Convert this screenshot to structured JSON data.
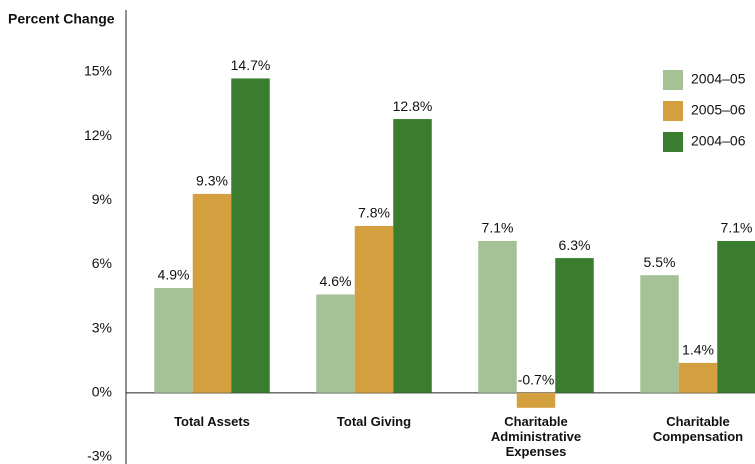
{
  "chart_data": {
    "type": "bar",
    "y_axis_label": "Percent Change",
    "categories": [
      "Total Assets",
      "Total Giving",
      "Charitable Administrative Expenses",
      "Charitable Compensation"
    ],
    "series": [
      {
        "name": "2004–05",
        "color": "#a5c297",
        "values": [
          4.9,
          4.6,
          7.1,
          5.5
        ],
        "value_labels": [
          "4.9%",
          "4.6%",
          "7.1%",
          "5.5%"
        ]
      },
      {
        "name": "2005–06",
        "color": "#d4a03f",
        "values": [
          9.3,
          7.8,
          -0.7,
          1.4
        ],
        "value_labels": [
          "9.3%",
          "7.8%",
          "-0.7%",
          "1.4%"
        ]
      },
      {
        "name": "2004–06",
        "color": "#3a7d2f",
        "values": [
          14.7,
          12.8,
          6.3,
          7.1
        ],
        "value_labels": [
          "14.7%",
          "12.8%",
          "6.3%",
          "7.1%"
        ]
      }
    ],
    "ylim": [
      -3,
      15
    ],
    "yticks": [
      {
        "value": -3,
        "label": "-3%"
      },
      {
        "value": 0,
        "label": "0%"
      },
      {
        "value": 3,
        "label": "3%"
      },
      {
        "value": 6,
        "label": "6%"
      },
      {
        "value": 9,
        "label": "9%"
      },
      {
        "value": 12,
        "label": "12%"
      },
      {
        "value": 15,
        "label": "15%"
      }
    ],
    "legend": "right"
  }
}
